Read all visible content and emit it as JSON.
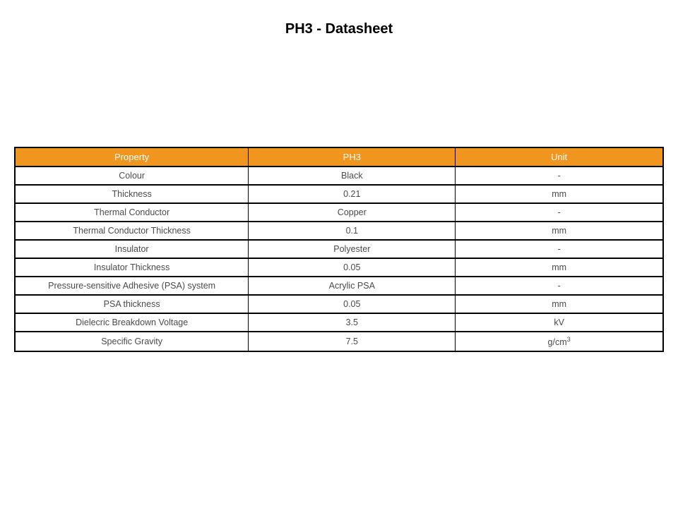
{
  "title": "PH3 - Datasheet",
  "table": {
    "type": "table",
    "header_bg": "#f0951d",
    "header_fg": "#ffffff",
    "body_fg": "#4a4a4a",
    "border_color": "#000000",
    "row_border_width": 2,
    "font_size_header": 13,
    "font_size_body": 12.5,
    "columns": [
      "Property",
      "PH3",
      "Unit"
    ],
    "col_widths_pct": [
      36,
      32,
      32
    ],
    "rows": [
      [
        "Colour",
        "Black",
        "-"
      ],
      [
        "Thickness",
        "0.21",
        "mm"
      ],
      [
        "Thermal Conductor",
        "Copper",
        "-"
      ],
      [
        "Thermal Conductor Thickness",
        "0.1",
        "mm"
      ],
      [
        "Insulator",
        "Polyester",
        "-"
      ],
      [
        "Insulator Thickness",
        "0.05",
        "mm"
      ],
      [
        "Pressure-sensitive Adhesive (PSA) system",
        "Acrylic PSA",
        "-"
      ],
      [
        "PSA thickness",
        "0.05",
        "mm"
      ],
      [
        "Dielecric Breakdown Voltage",
        "3.5",
        "kV"
      ],
      [
        "Specific Gravity",
        "7.5",
        "g/cm³"
      ]
    ]
  }
}
